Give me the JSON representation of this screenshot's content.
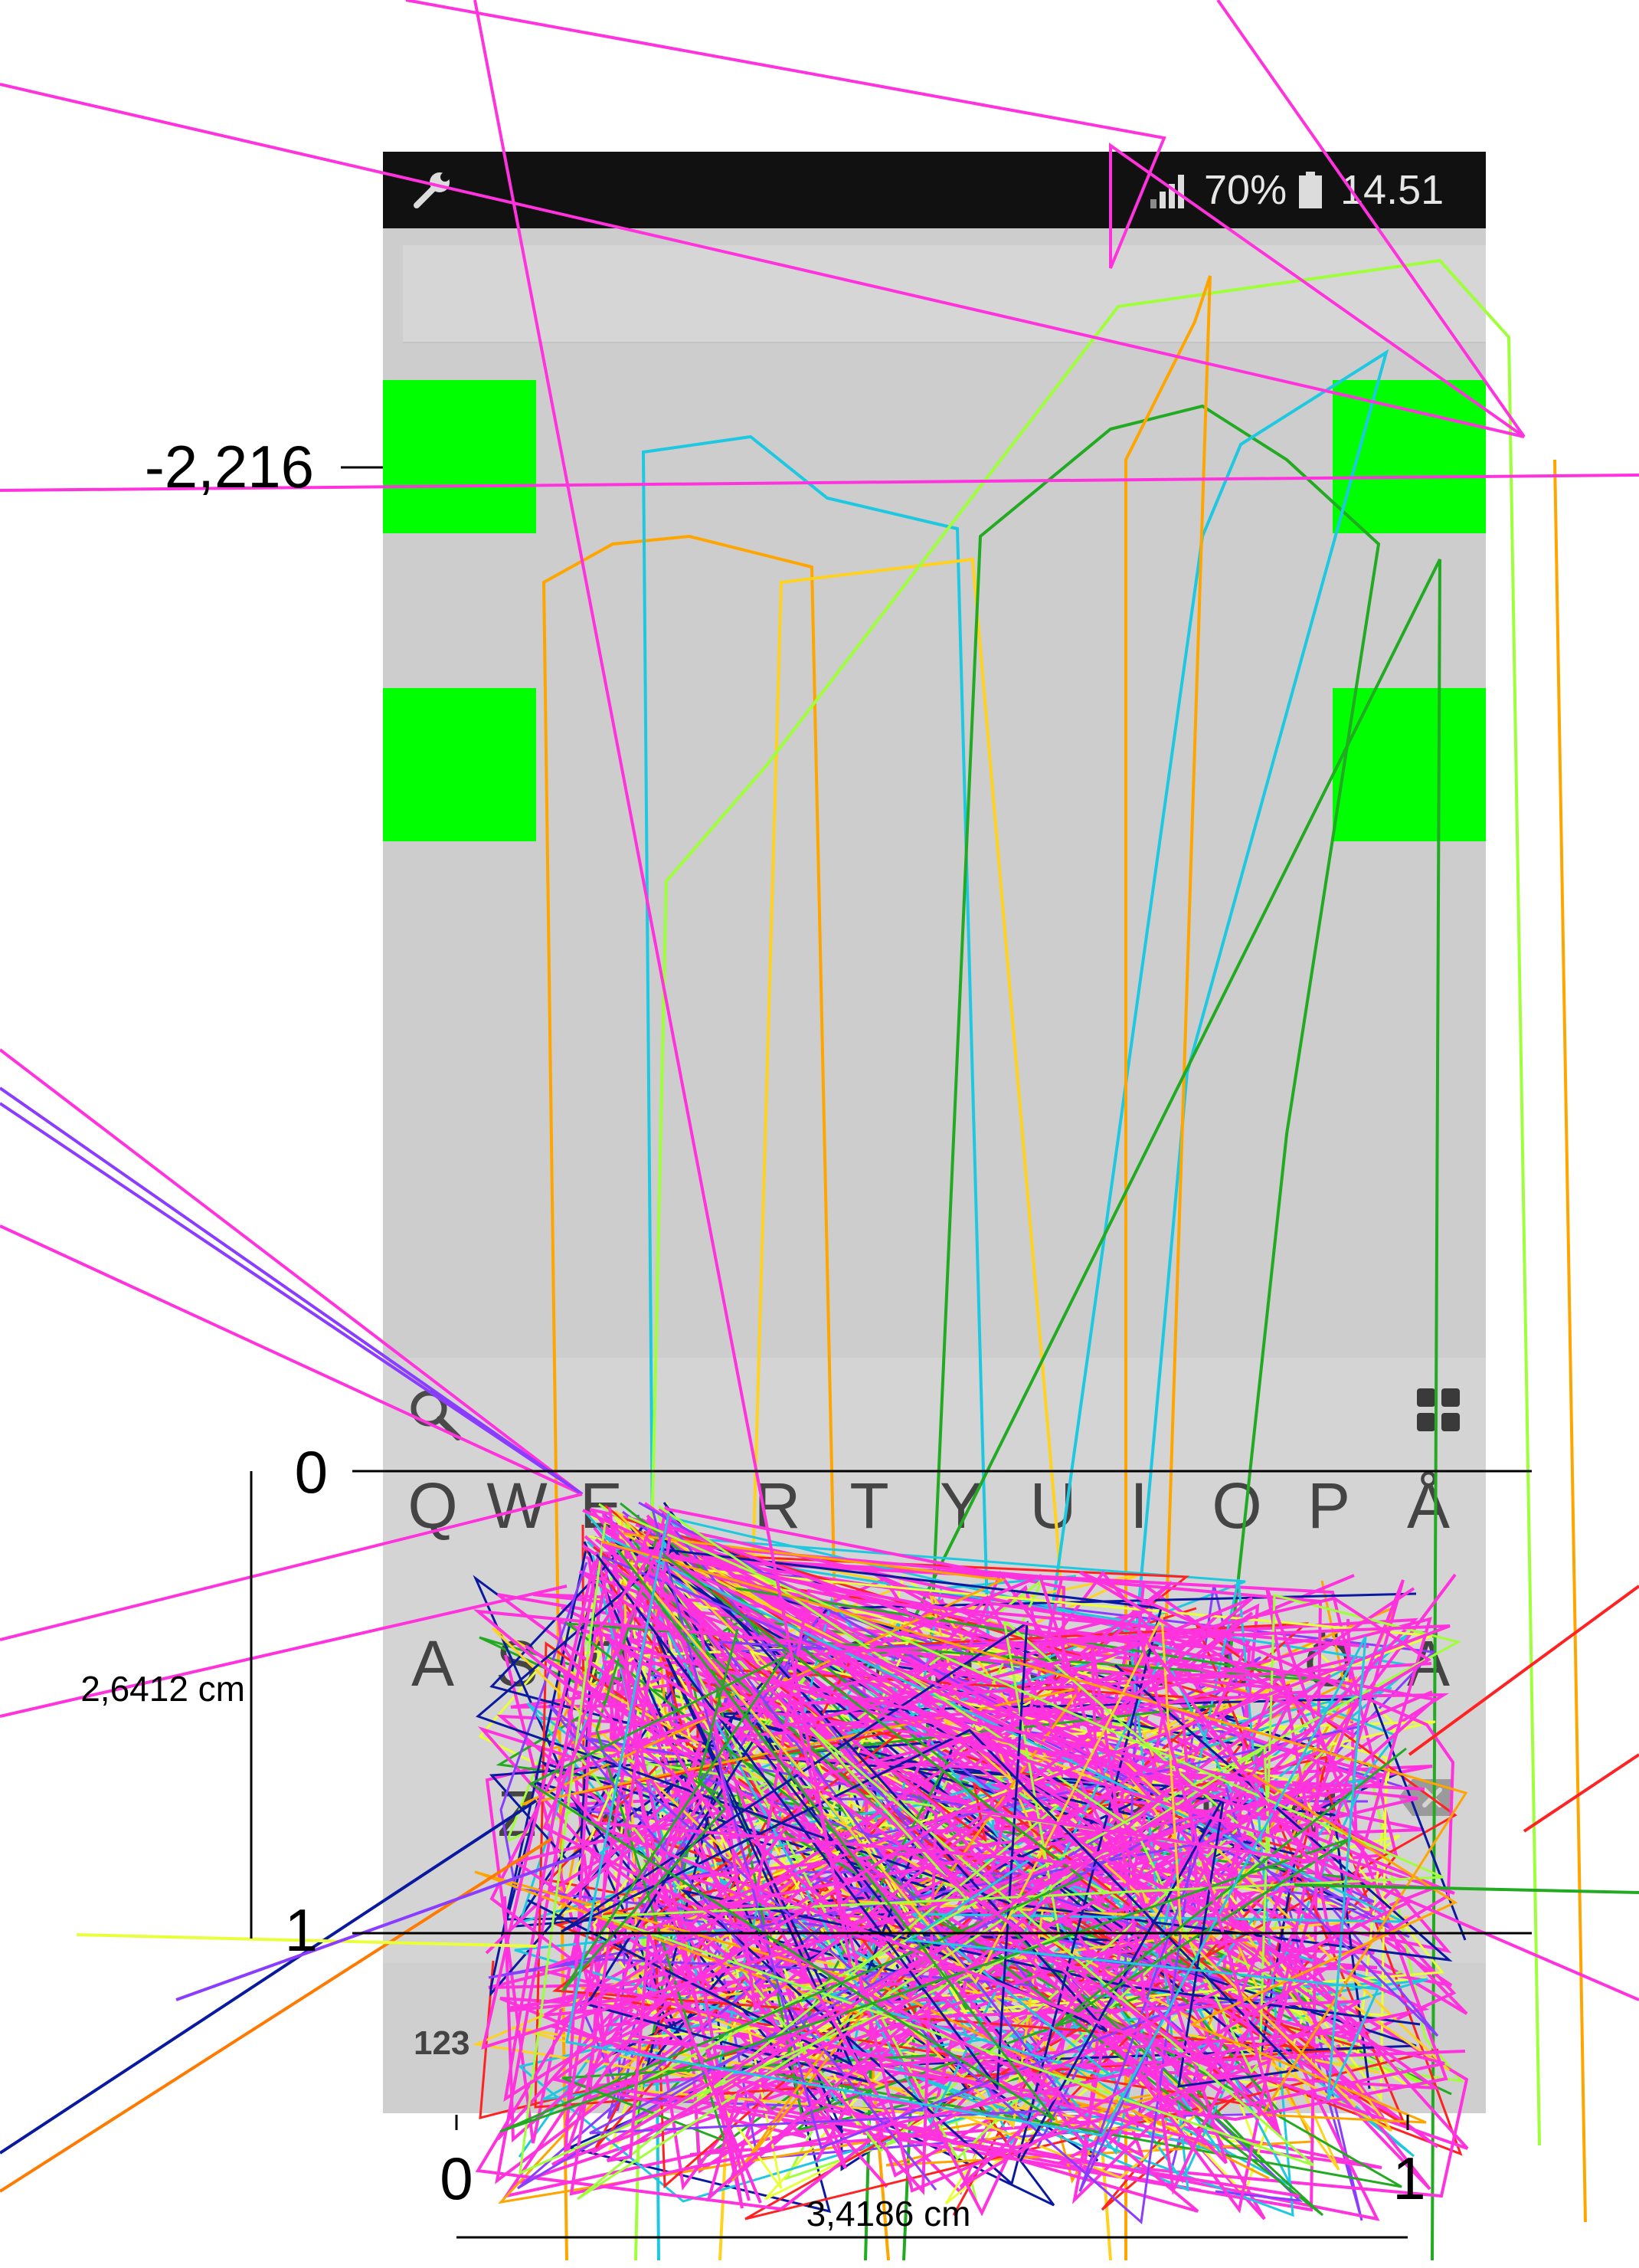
{
  "status_bar": {
    "battery": "70%",
    "time": "14.51",
    "left_icon": "wrench-icon",
    "signal_icon": "signal-icon",
    "battery_icon": "battery-icon"
  },
  "keyboard": {
    "row1": [
      "Q",
      "W",
      "E",
      "R",
      "T",
      "Y",
      "U",
      "I",
      "O",
      "P",
      "Å"
    ],
    "row2": [
      "A",
      "S",
      "D",
      "F",
      "G",
      "H",
      "J",
      "K",
      "L",
      "Ö",
      "Ä"
    ],
    "row3": [
      "Z",
      "X",
      "C",
      "V",
      "B",
      "N",
      "M"
    ],
    "symbols_key": "123",
    "search_icon": "search-icon",
    "grid_icon": "grid-icon",
    "backspace_icon": "backspace-icon"
  },
  "targets": {
    "color": "#00ff00"
  },
  "overlay_plot": {
    "left_tick": "-2,216",
    "y_axis": {
      "tick_top": "0",
      "tick_bottom": "1",
      "label": "2,6412 cm"
    },
    "x_axis": {
      "tick_left": "0",
      "tick_right": "1",
      "label": "3,4186 cm"
    },
    "trace_colors": [
      "#ff33dd",
      "#ff2222",
      "#ffa500",
      "#ffd21f",
      "#9fff3a",
      "#22aa22",
      "#1ec8e0",
      "#0a1aa0",
      "#8a3cff",
      "#e8ff3a"
    ]
  }
}
